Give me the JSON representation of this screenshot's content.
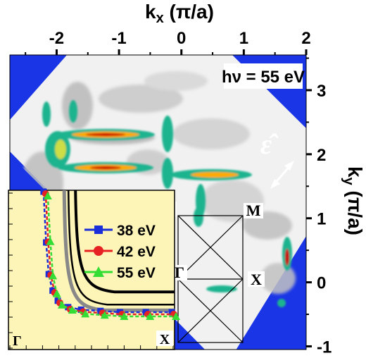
{
  "chart_data": {
    "type": "heatmap",
    "title": "",
    "xlabel_main": "k",
    "xlabel_sub": "x",
    "xlabel_unit": "(π/a)",
    "ylabel_main": "k",
    "ylabel_sub": "y",
    "ylabel_unit": "(π/a)",
    "xlim": [
      -2.75,
      2.0
    ],
    "ylim": [
      -1.05,
      3.55
    ],
    "x_ticks": [
      -2,
      -1,
      0,
      1,
      2
    ],
    "x_tick_labels": [
      "-2",
      "-1",
      "0",
      "1",
      "2"
    ],
    "y_ticks": [
      -1,
      0,
      1,
      2,
      3
    ],
    "y_tick_labels": [
      "-1",
      "0",
      "1",
      "2",
      "3"
    ],
    "photon_energy_label": "hν = 55 eV",
    "polarization_symbol": "ε̂",
    "colors": {
      "background": "#1a35e6",
      "map_paper": "#ffffff",
      "low": "#e6e6e6",
      "mid": "#1fb38f",
      "high": "#ff9900",
      "peak": "#cc0000"
    },
    "bz_points": {
      "M_top_left": "M",
      "M_top_right": "M",
      "Gamma": "Γ",
      "X": "X"
    },
    "inset": {
      "type": "line",
      "corner_labels": {
        "bottom_left": "Γ",
        "bottom_right": "X"
      },
      "background": "#fdf5b8",
      "series": [
        {
          "name": "38 eV",
          "color": "#1a2fd9",
          "marker": "square",
          "x": [
            0.01,
            0.03,
            0.05,
            0.08,
            0.12,
            0.2,
            0.3,
            0.45,
            0.6,
            0.8,
            1.0
          ],
          "y": [
            1.0,
            0.6,
            0.35,
            0.22,
            0.14,
            0.09,
            0.07,
            0.06,
            0.05,
            0.05,
            0.05
          ]
        },
        {
          "name": "42 eV",
          "color": "#e62222",
          "marker": "circle",
          "x": [
            0.01,
            0.03,
            0.05,
            0.08,
            0.12,
            0.2,
            0.3,
            0.45,
            0.6,
            0.8,
            1.0
          ],
          "y": [
            1.0,
            0.62,
            0.36,
            0.22,
            0.14,
            0.09,
            0.07,
            0.06,
            0.05,
            0.05,
            0.05
          ]
        },
        {
          "name": "55 eV",
          "color": "#33dd33",
          "marker": "triangle",
          "x": [
            0.01,
            0.03,
            0.05,
            0.08,
            0.12,
            0.2,
            0.3,
            0.45,
            0.6,
            0.8,
            1.0
          ],
          "y": [
            1.0,
            0.64,
            0.37,
            0.23,
            0.14,
            0.1,
            0.07,
            0.06,
            0.05,
            0.05,
            0.05
          ]
        }
      ]
    }
  }
}
